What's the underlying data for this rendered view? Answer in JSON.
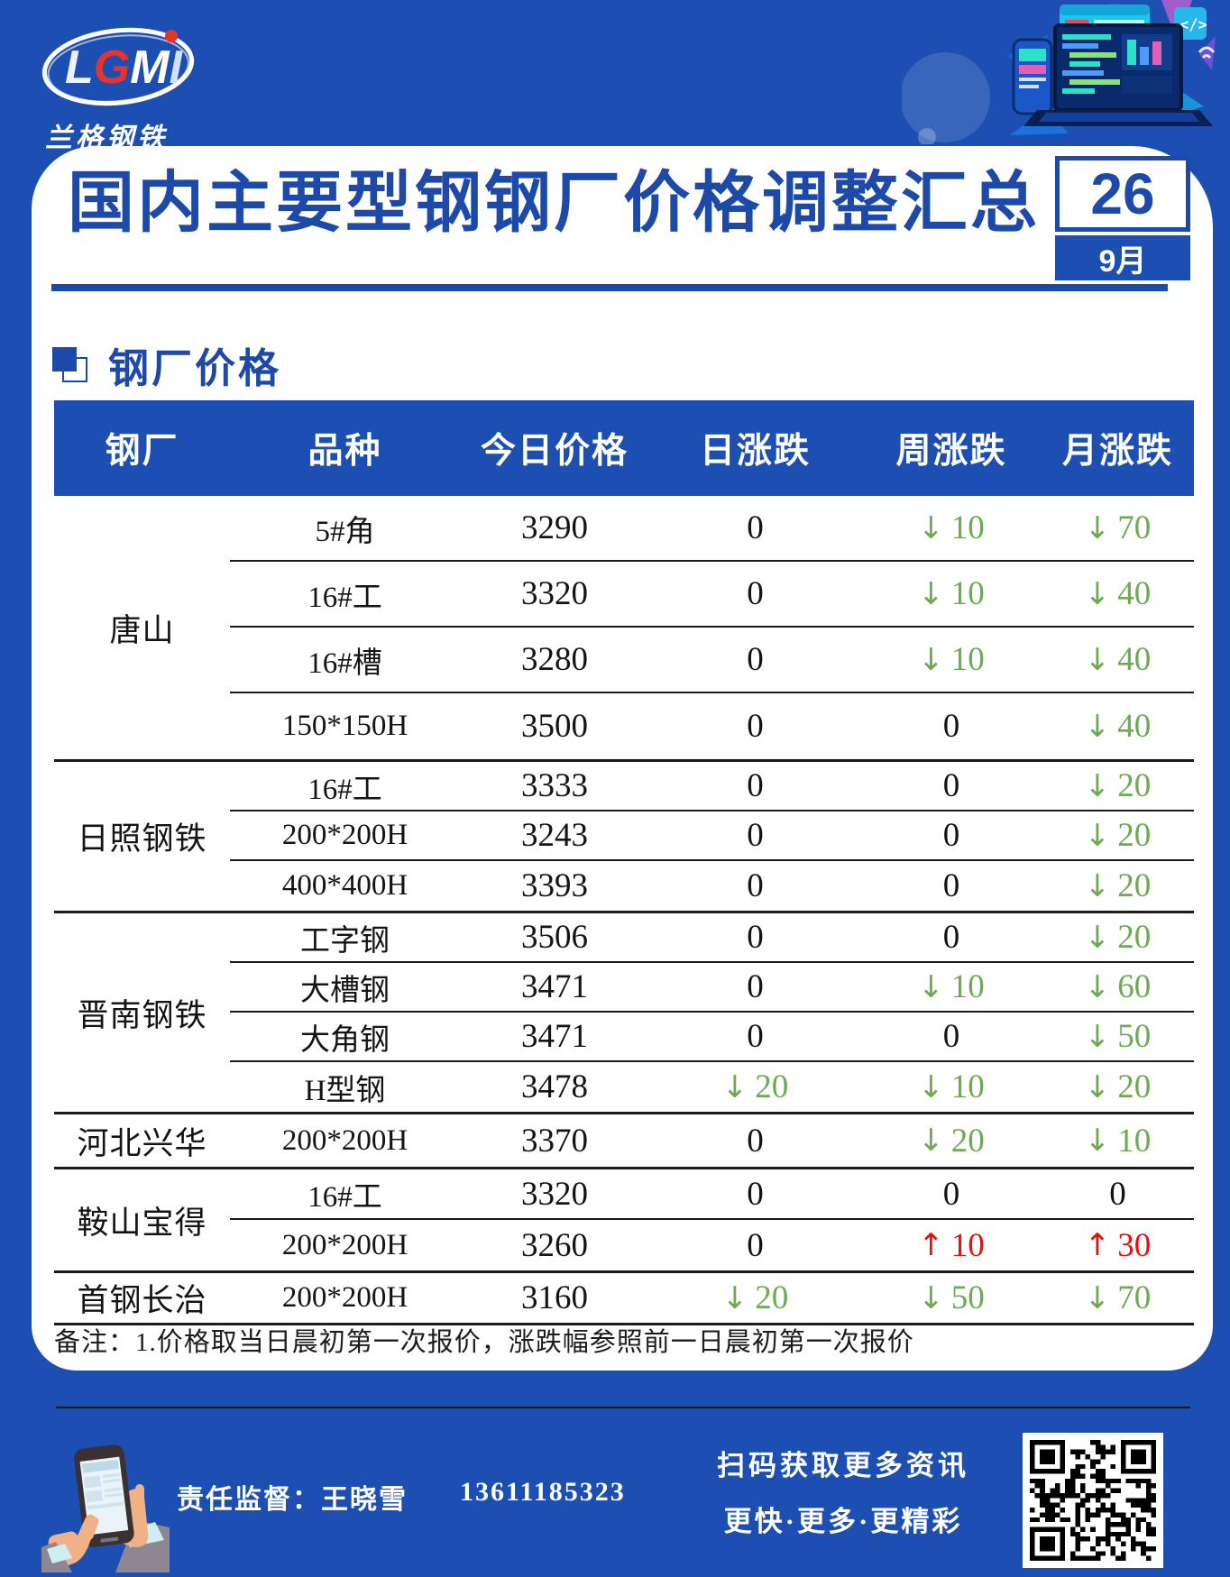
{
  "brand": {
    "logo_text": "LGMI",
    "logo_sub": "兰格钢铁"
  },
  "header": {
    "title": "国内主要型钢钢厂价格调整汇总",
    "date_day": "26",
    "date_month": "9月"
  },
  "section": {
    "title": "钢厂价格"
  },
  "table": {
    "columns": [
      "钢厂",
      "品种",
      "今日价格",
      "日涨跌",
      "周涨跌",
      "月涨跌"
    ],
    "groups": [
      {
        "factory": "唐山",
        "rows": [
          {
            "variety": "5#角",
            "price": "3290",
            "day": "0",
            "week": "-10",
            "month": "-70"
          },
          {
            "variety": "16#工",
            "price": "3320",
            "day": "0",
            "week": "-10",
            "month": "-40"
          },
          {
            "variety": "16#槽",
            "price": "3280",
            "day": "0",
            "week": "-10",
            "month": "-40"
          },
          {
            "variety": "150*150H",
            "price": "3500",
            "day": "0",
            "week": "0",
            "month": "-40"
          }
        ]
      },
      {
        "factory": "日照钢铁",
        "rows": [
          {
            "variety": "16#工",
            "price": "3333",
            "day": "0",
            "week": "0",
            "month": "-20"
          },
          {
            "variety": "200*200H",
            "price": "3243",
            "day": "0",
            "week": "0",
            "month": "-20"
          },
          {
            "variety": "400*400H",
            "price": "3393",
            "day": "0",
            "week": "0",
            "month": "-20"
          }
        ]
      },
      {
        "factory": "晋南钢铁",
        "rows": [
          {
            "variety": "工字钢",
            "price": "3506",
            "day": "0",
            "week": "0",
            "month": "-20"
          },
          {
            "variety": "大槽钢",
            "price": "3471",
            "day": "0",
            "week": "-10",
            "month": "-60"
          },
          {
            "variety": "大角钢",
            "price": "3471",
            "day": "0",
            "week": "0",
            "month": "-50"
          },
          {
            "variety": "H型钢",
            "price": "3478",
            "day": "-20",
            "week": "-10",
            "month": "-20"
          }
        ]
      },
      {
        "factory": "河北兴华",
        "rows": [
          {
            "variety": "200*200H",
            "price": "3370",
            "day": "0",
            "week": "-20",
            "month": "-10"
          }
        ]
      },
      {
        "factory": "鞍山宝得",
        "rows": [
          {
            "variety": "16#工",
            "price": "3320",
            "day": "0",
            "week": "0",
            "month": "0"
          },
          {
            "variety": "200*200H",
            "price": "3260",
            "day": "0",
            "week": "+10",
            "month": "+30"
          }
        ]
      },
      {
        "factory": "首钢长治",
        "rows": [
          {
            "variety": "200*200H",
            "price": "3160",
            "day": "-20",
            "week": "-50",
            "month": "-70"
          }
        ]
      }
    ]
  },
  "note": "备注：1.价格取当日晨初第一次报价，涨跌幅参照前一日晨初第一次报价",
  "footer": {
    "supervisor": "责任监督：王晓雪",
    "phone": "13611185323",
    "qr_line1": "扫码获取更多资讯",
    "qr_line2": "更快·更多·更精彩"
  },
  "colors": {
    "page_blue": "#1C4FB1",
    "accent_blue": "#1D4AA8",
    "down_green": "#6CAB4F",
    "up_red": "#E8100C"
  }
}
